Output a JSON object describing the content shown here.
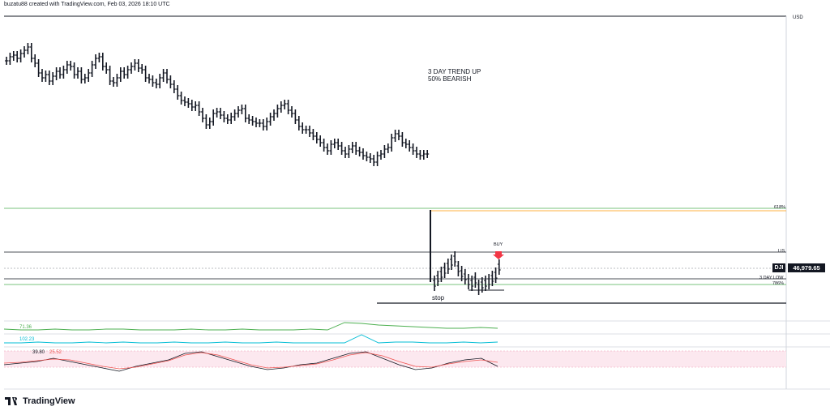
{
  "header": {
    "text": "buzatu88 created with TradingView.com, Feb 03, 2026 18:10 UTC"
  },
  "axis": {
    "currency": "USD"
  },
  "annotation": {
    "line1": "3 DAY TREND UP",
    "line2": "50% BEARISH"
  },
  "levels": {
    "fib618": "618%",
    "lis": "LIS",
    "three_day_low": "3 DAY LOW",
    "fib786": "786%"
  },
  "labels": {
    "buy": "BUY",
    "stop": "stop"
  },
  "ticker": {
    "symbol": "DJI",
    "price": "46,979.65"
  },
  "indicators": {
    "green_value": "71.36",
    "cyan_value": "102.23",
    "stoch_k": "39.80",
    "stoch_d": "25.52"
  },
  "branding": {
    "logo_text": "TradingView"
  },
  "colors": {
    "bars": "#131722",
    "fib_green": "#4caf50",
    "orange": "#ff9800",
    "buy_arrow": "#f23645",
    "cyan": "#00bcd4",
    "stoch_band": "#fce8ef",
    "stoch_k": "#ef5350"
  },
  "chart_data": {
    "type": "line",
    "title": "",
    "series": [
      {
        "values": [
          75,
          70,
          68,
          72,
          66,
          62,
          58,
          72,
          78,
          90,
          96,
          92,
          100,
          94,
          88,
          92,
          86,
          80,
          82,
          92,
          88,
          98,
          96,
          90,
          80,
          72,
          70,
          82,
          86,
          100,
          102,
          96,
          88,
          92,
          86,
          82,
          78,
          84,
          86,
          96,
          98,
          102,
          104,
          96,
          90,
          98,
          104,
          110,
          118,
          124,
          126,
          128,
          132,
          130,
          138,
          146,
          154,
          150,
          140,
          138,
          142,
          146,
          148,
          144,
          140,
          136,
          134,
          146,
          148,
          150,
          152,
          152,
          156,
          150,
          144,
          140,
          134,
          130,
          128,
          136,
          140,
          148,
          156,
          160,
          160,
          164,
          168,
          172,
          176,
          182,
          186,
          178,
          176,
          180,
          186,
          190,
          184,
          180,
          186,
          188,
          192,
          194,
          196,
          200,
          192,
          190,
          184,
          182,
          170,
          165,
          168,
          176,
          178,
          182,
          186,
          190,
          192,
          190,
          190
        ]
      }
    ],
    "overlay": {
      "spike": {
        "top": "618%",
        "low": "stop"
      },
      "lower_bars": [
        350,
        344,
        339,
        334,
        329,
        324,
        320,
        332,
        338,
        342,
        348,
        350,
        346,
        355,
        352,
        350,
        348,
        344,
        340,
        330
      ]
    },
    "indicator_green": {
      "values": [
        406,
        407,
        407,
        406,
        407,
        407,
        406,
        406,
        407,
        407,
        407,
        406,
        407,
        407,
        406,
        407,
        407,
        407,
        406,
        407,
        398,
        399,
        401,
        402,
        403,
        404,
        405,
        405,
        404,
        405
      ]
    },
    "indicator_cyan": {
      "values": [
        423,
        423,
        422,
        423,
        423,
        422,
        423,
        422,
        423,
        423,
        422,
        423,
        423,
        422,
        423,
        423,
        422,
        423,
        423,
        423,
        423,
        413,
        423,
        422,
        422,
        423,
        423,
        422,
        423,
        422
      ]
    },
    "stochastic": {
      "k": [
        450,
        448,
        446,
        442,
        446,
        450,
        454,
        458,
        452,
        448,
        444,
        436,
        434,
        440,
        446,
        452,
        456,
        454,
        450,
        448,
        442,
        436,
        434,
        442,
        450,
        456,
        454,
        448,
        444,
        442,
        452
      ],
      "d": [
        448,
        447,
        445,
        443,
        444,
        448,
        452,
        455,
        453,
        449,
        445,
        438,
        435,
        438,
        444,
        450,
        454,
        453,
        451,
        449,
        444,
        438,
        435,
        439,
        446,
        452,
        453,
        449,
        446,
        444,
        447
      ]
    }
  }
}
